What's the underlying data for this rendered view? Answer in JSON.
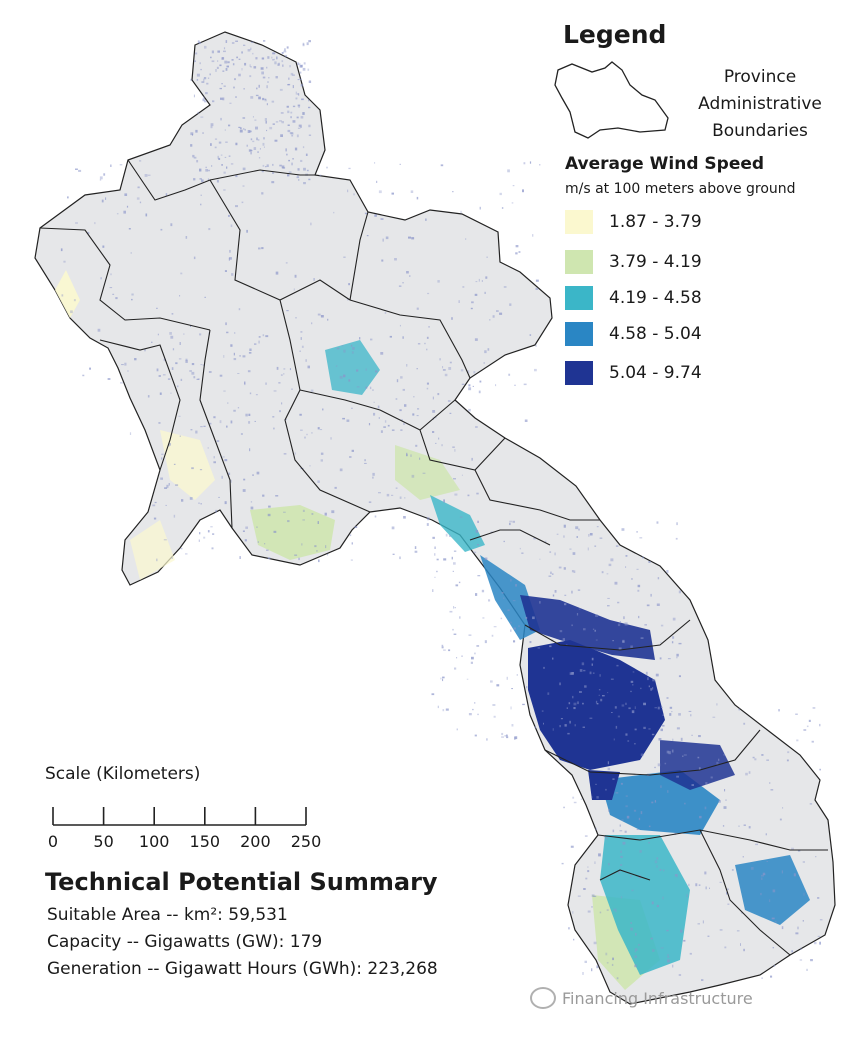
{
  "legend": {
    "title": "Legend",
    "province_label": [
      "Province",
      "Administrative",
      "Boundaries"
    ],
    "wind_title": "Average Wind Speed",
    "wind_subtitle": "m/s at 100 meters above ground",
    "classes": [
      {
        "range": "1.87 - 3.79",
        "color": "#fbf8cf"
      },
      {
        "range": "3.79 - 4.19",
        "color": "#cfe6b0"
      },
      {
        "range": "4.19 - 4.58",
        "color": "#3bb6c8"
      },
      {
        "range": "4.58 - 5.04",
        "color": "#2a86c4"
      },
      {
        "range": "5.04 - 9.74",
        "color": "#1f3493"
      }
    ]
  },
  "scale": {
    "title": "Scale (Kilometers)",
    "ticks": [
      "0",
      "50",
      "100",
      "150",
      "200",
      "250"
    ]
  },
  "summary": {
    "title": "Technical Potential Summary",
    "lines": [
      "Suitable Area -- km²: 59,531",
      "Capacity -- Gigawatts (GW): 179",
      "Generation -- Gigawatt Hours (GWh): 223,268"
    ]
  },
  "watermark": "Financing Infrastructure",
  "colors": {
    "land": "#e6e7e9",
    "boundary": "#222222",
    "speckle": "#8b95c9"
  }
}
